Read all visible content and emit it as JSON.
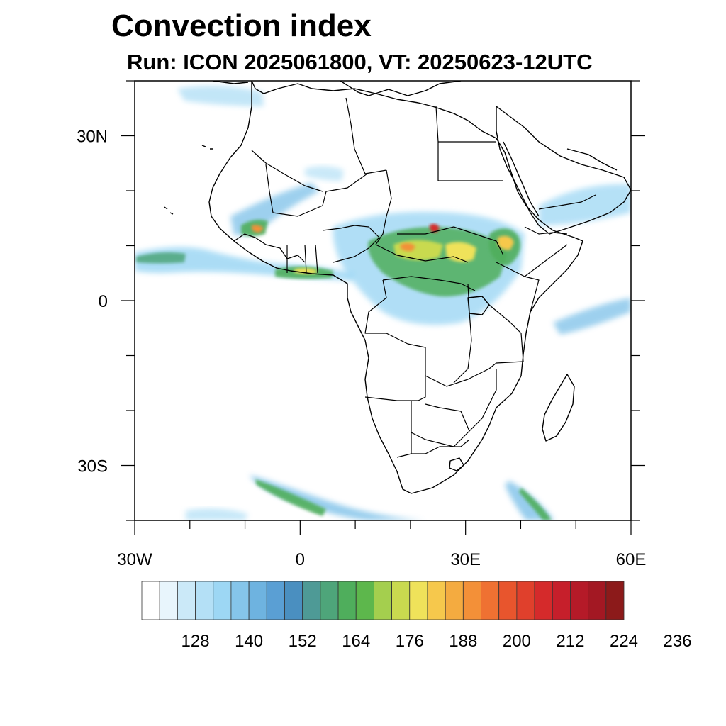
{
  "title": "Convection index",
  "subtitle": "Run: ICON 2025061800,  VT: 20250623-12UTC",
  "map": {
    "projection": "equirectangular",
    "lon_range": [
      -30,
      60
    ],
    "lat_range": [
      -40,
      40
    ],
    "lat_labels": [
      {
        "lat": 30,
        "text": "30N"
      },
      {
        "lat": 0,
        "text": "0"
      },
      {
        "lat": -30,
        "text": "30S"
      }
    ],
    "lon_labels": [
      {
        "lon": -30,
        "text": "30W"
      },
      {
        "lon": 0,
        "text": "0"
      },
      {
        "lon": 30,
        "text": "30E"
      },
      {
        "lon": 60,
        "text": "60E"
      }
    ]
  },
  "colorbar": {
    "colors": [
      "#ffffff",
      "#e8f5fc",
      "#cbe9f8",
      "#b4e0f6",
      "#9dd7f4",
      "#85c5ea",
      "#6eb3e0",
      "#5a9fd4",
      "#4a8fc0",
      "#4e9a96",
      "#4ea57a",
      "#4fae5c",
      "#5db74c",
      "#a4cf4e",
      "#c9da4f",
      "#efe25a",
      "#f6c84c",
      "#f4ab40",
      "#f39038",
      "#ef7132",
      "#e8552d",
      "#e0402c",
      "#d52a2b",
      "#c61f2b",
      "#b51a28",
      "#a31823",
      "#8c1a1a"
    ],
    "tick_labels": [
      "128",
      "140",
      "152",
      "164",
      "176",
      "188",
      "200",
      "212",
      "224",
      "236"
    ]
  }
}
